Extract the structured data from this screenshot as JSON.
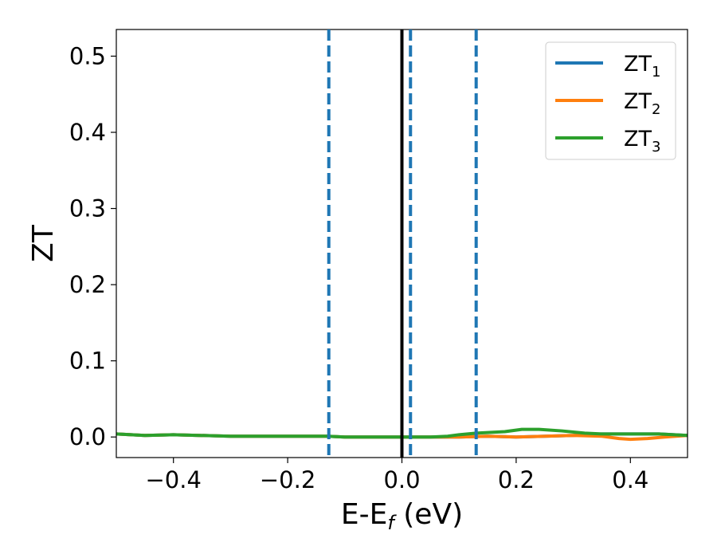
{
  "chart_data": {
    "type": "line",
    "title": "",
    "xlabel_main": "E-E",
    "xlabel_sub": "f",
    "xlabel_tail": " (eV)",
    "ylabel": "ZT",
    "xlim": [
      -0.5,
      0.5
    ],
    "ylim": [
      -0.027,
      0.535
    ],
    "grid": false,
    "legend_position": "top-right",
    "x_ticks": [
      -0.4,
      -0.2,
      0.0,
      0.2,
      0.4
    ],
    "x_tick_labels": [
      "−0.4",
      "−0.2",
      "0.0",
      "0.2",
      "0.4"
    ],
    "y_ticks": [
      0.0,
      0.1,
      0.2,
      0.3,
      0.4,
      0.5
    ],
    "y_tick_labels": [
      "0.0",
      "0.1",
      "0.2",
      "0.3",
      "0.4",
      "0.5"
    ],
    "vlines": [
      {
        "x": -0.128,
        "style": "dashed",
        "color": "#1f77b4"
      },
      {
        "x": 0.0,
        "style": "solid",
        "color": "#000000"
      },
      {
        "x": 0.015,
        "style": "dashed",
        "color": "#1f77b4"
      },
      {
        "x": 0.13,
        "style": "dashed",
        "color": "#1f77b4"
      }
    ],
    "series": [
      {
        "name_main": "ZT",
        "name_sub": "1",
        "color": "#1f77b4",
        "x": [
          -0.5,
          -0.45,
          -0.4,
          -0.3,
          -0.2,
          -0.13,
          -0.1,
          -0.05,
          0.0,
          0.05,
          0.1,
          0.15,
          0.2,
          0.25,
          0.3,
          0.35,
          0.4,
          0.45,
          0.5
        ],
        "y": [
          0.004,
          0.002,
          0.003,
          0.001,
          0.001,
          0.001,
          0.0,
          0.0,
          0.0,
          0.0,
          0.0,
          0.001,
          0.0,
          0.001,
          0.002,
          0.004,
          0.004,
          0.004,
          0.002
        ]
      },
      {
        "name_main": "ZT",
        "name_sub": "2",
        "color": "#ff7f0e",
        "x": [
          -0.5,
          -0.45,
          -0.4,
          -0.3,
          -0.2,
          -0.13,
          -0.1,
          -0.05,
          0.0,
          0.05,
          0.1,
          0.15,
          0.2,
          0.25,
          0.3,
          0.35,
          0.38,
          0.4,
          0.43,
          0.46,
          0.5
        ],
        "y": [
          0.004,
          0.002,
          0.003,
          0.001,
          0.001,
          0.001,
          0.0,
          0.0,
          0.0,
          0.0,
          0.0,
          0.001,
          0.0,
          0.001,
          0.002,
          0.001,
          -0.002,
          -0.003,
          -0.002,
          0.0,
          0.002
        ]
      },
      {
        "name_main": "ZT",
        "name_sub": "3",
        "color": "#2ca02c",
        "x": [
          -0.5,
          -0.45,
          -0.4,
          -0.3,
          -0.2,
          -0.13,
          -0.1,
          -0.05,
          0.0,
          0.05,
          0.08,
          0.1,
          0.13,
          0.18,
          0.21,
          0.24,
          0.28,
          0.32,
          0.35,
          0.4,
          0.45,
          0.5
        ],
        "y": [
          0.004,
          0.002,
          0.003,
          0.001,
          0.001,
          0.001,
          0.0,
          0.0,
          0.0,
          0.0,
          0.001,
          0.003,
          0.005,
          0.007,
          0.01,
          0.01,
          0.008,
          0.005,
          0.004,
          0.004,
          0.004,
          0.002
        ]
      }
    ]
  }
}
